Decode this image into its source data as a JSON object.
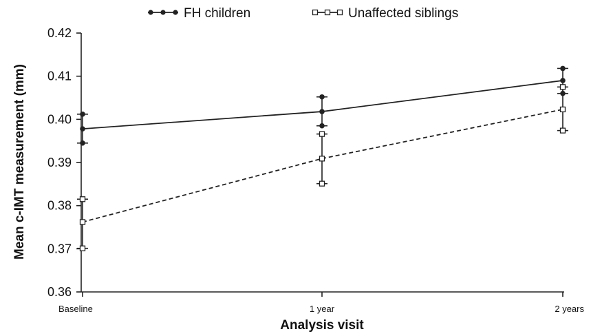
{
  "chart_data": {
    "type": "line",
    "title": "",
    "xlabel": "Analysis visit",
    "ylabel": "Mean c-IMT measurement (mm)",
    "categories": [
      "Baseline",
      "1 year",
      "2 years"
    ],
    "ylim": [
      0.36,
      0.42
    ],
    "yticks": [
      "0.36",
      "0.37",
      "0.38",
      "0.39",
      "0.40",
      "0.41",
      "0.42"
    ],
    "grid": false,
    "legend_position": "top",
    "series": [
      {
        "name": "FH children",
        "values": [
          0.3978,
          0.4018,
          0.409
        ],
        "error_low": [
          0.3945,
          0.3985,
          0.406
        ],
        "error_high": [
          0.4012,
          0.4052,
          0.4118
        ],
        "marker": "filled-circle",
        "line_style": "solid",
        "color": "#222222"
      },
      {
        "name": "Unaffected siblings",
        "values": [
          0.3762,
          0.3909,
          0.4023
        ],
        "error_low": [
          0.3701,
          0.3851,
          0.3974
        ],
        "error_high": [
          0.3815,
          0.3966,
          0.4075
        ],
        "marker": "open-square",
        "line_style": "dashed",
        "color": "#222222"
      }
    ]
  }
}
